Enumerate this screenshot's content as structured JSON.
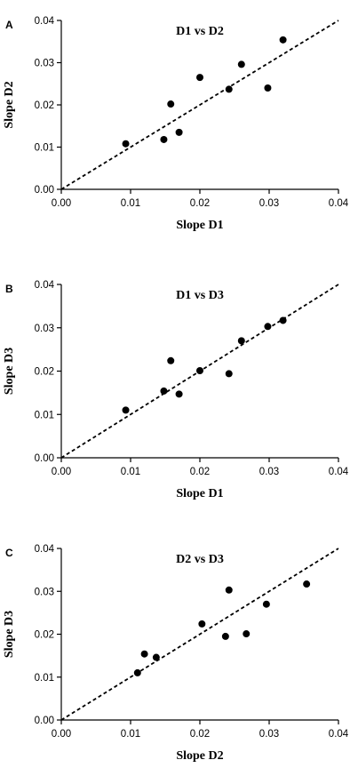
{
  "chart_data": [
    {
      "type": "scatter",
      "panel": "A",
      "title": "D1 vs D2",
      "xlabel": "Slope D1",
      "ylabel": "Slope D2",
      "xlim": [
        0,
        0.04
      ],
      "ylim": [
        0,
        0.04
      ],
      "xticks": [
        "0.00",
        "0.01",
        "0.02",
        "0.03",
        "0.04"
      ],
      "yticks": [
        "0.00",
        "0.01",
        "0.02",
        "0.03",
        "0.04"
      ],
      "reference_line": "dashed y = x",
      "points": [
        {
          "x": 0.0093,
          "y": 0.0108
        },
        {
          "x": 0.0148,
          "y": 0.0118
        },
        {
          "x": 0.0158,
          "y": 0.0202
        },
        {
          "x": 0.017,
          "y": 0.0135
        },
        {
          "x": 0.02,
          "y": 0.0265
        },
        {
          "x": 0.0242,
          "y": 0.0237
        },
        {
          "x": 0.026,
          "y": 0.0296
        },
        {
          "x": 0.0298,
          "y": 0.024
        },
        {
          "x": 0.032,
          "y": 0.0354
        }
      ]
    },
    {
      "type": "scatter",
      "panel": "B",
      "title": "D1 vs D3",
      "xlabel": "Slope D1",
      "ylabel": "Slope D3",
      "xlim": [
        0,
        0.04
      ],
      "ylim": [
        0,
        0.04
      ],
      "xticks": [
        "0.00",
        "0.01",
        "0.02",
        "0.03",
        "0.04"
      ],
      "yticks": [
        "0.00",
        "0.01",
        "0.02",
        "0.03",
        "0.04"
      ],
      "reference_line": "dashed y = x",
      "points": [
        {
          "x": 0.0093,
          "y": 0.011
        },
        {
          "x": 0.0148,
          "y": 0.0154
        },
        {
          "x": 0.0158,
          "y": 0.0224
        },
        {
          "x": 0.017,
          "y": 0.0147
        },
        {
          "x": 0.02,
          "y": 0.0201
        },
        {
          "x": 0.0242,
          "y": 0.0194
        },
        {
          "x": 0.026,
          "y": 0.027
        },
        {
          "x": 0.0298,
          "y": 0.0303
        },
        {
          "x": 0.032,
          "y": 0.0317
        }
      ]
    },
    {
      "type": "scatter",
      "panel": "C",
      "title": "D2 vs D3",
      "xlabel": "Slope D2",
      "ylabel": "Slope D3",
      "xlim": [
        0,
        0.04
      ],
      "ylim": [
        0,
        0.04
      ],
      "xticks": [
        "0.00",
        "0.01",
        "0.02",
        "0.03",
        "0.04"
      ],
      "yticks": [
        "0.00",
        "0.01",
        "0.02",
        "0.03",
        "0.04"
      ],
      "reference_line": "dashed y = x",
      "points": [
        {
          "x": 0.011,
          "y": 0.011
        },
        {
          "x": 0.012,
          "y": 0.0154
        },
        {
          "x": 0.0137,
          "y": 0.0146
        },
        {
          "x": 0.0203,
          "y": 0.0224
        },
        {
          "x": 0.0237,
          "y": 0.0195
        },
        {
          "x": 0.0242,
          "y": 0.0303
        },
        {
          "x": 0.0267,
          "y": 0.0201
        },
        {
          "x": 0.0296,
          "y": 0.027
        },
        {
          "x": 0.0354,
          "y": 0.0317
        }
      ]
    }
  ]
}
